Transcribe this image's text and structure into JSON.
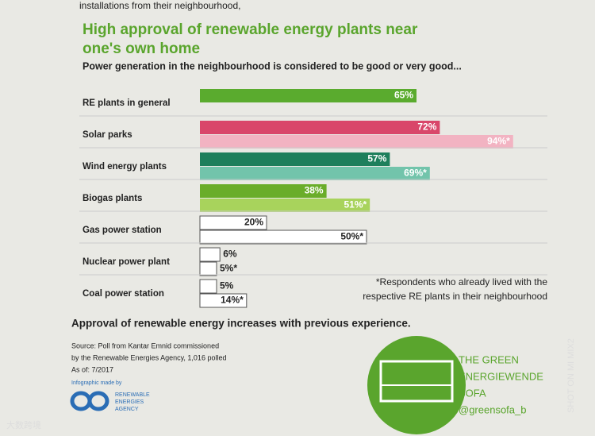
{
  "header_fragment": "installations from their neighbourhood,",
  "chart_data": {
    "type": "bar",
    "title": "High approval of renewable energy plants near",
    "title_line2": "one's own home",
    "subtitle": "Power generation in the neighbourhood is considered to be good or very good...",
    "categories": [
      "RE plants in general",
      "Solar parks",
      "Wind energy plants",
      "Biogas plants",
      "Gas power station",
      "Nuclear power plant",
      "Coal power station"
    ],
    "xlim": [
      0,
      100
    ],
    "series": [
      {
        "values": [
          65,
          72,
          57,
          38,
          20,
          6,
          5
        ],
        "value_labels": [
          "65%",
          "72%",
          "57%",
          "38%",
          "20%",
          "6%",
          "5%"
        ],
        "colors": [
          "#5aab2e",
          "#d9466a",
          "#1e7f5c",
          "#6aad2a",
          "#ffffff",
          "#ffffff",
          "#ffffff"
        ]
      },
      {
        "values": [
          null,
          94,
          69,
          51,
          50,
          5,
          14
        ],
        "value_labels": [
          null,
          "94%*",
          "69%*",
          "51%*",
          "50%*",
          "5%*",
          "14%*"
        ],
        "colors": [
          null,
          "#f2b3c2",
          "#72c4ab",
          "#a8d35c",
          "#ffffff",
          "#ffffff",
          "#ffffff"
        ]
      }
    ],
    "note": [
      "*Respondents who already lived with the",
      "respective RE plants in their neighbourhood"
    ],
    "conclusion": "Approval of renewable energy increases with previous experience."
  },
  "source": [
    "Source: Poll from Kantar Emnid commissioned",
    "by the Renewable Energies Agency, 1,016 polled",
    "As of: 7/2017"
  ],
  "credit": [
    "Infographic made by",
    "RENEWABLE",
    "ENERGIES",
    "AGENCY"
  ],
  "logo": [
    "THE GREEN",
    "ENERGIEWENDE",
    "SOFA",
    "@greensofa_b"
  ],
  "watermark": [
    "SHOT ON MI MIX2",
    "大数跨境"
  ]
}
